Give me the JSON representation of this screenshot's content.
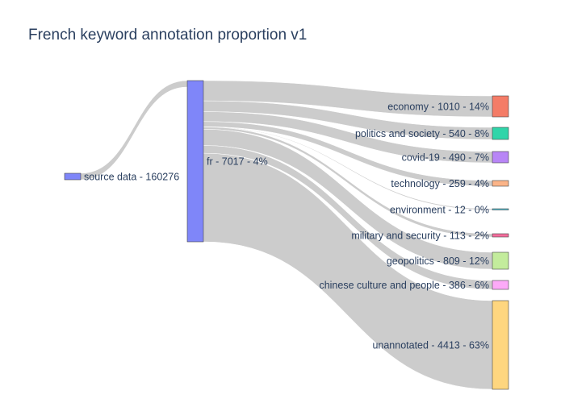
{
  "chart_data": {
    "type": "sankey",
    "title": "French keyword annotation proportion v1",
    "nodes": [
      {
        "id": "source",
        "label": "source data - 160276",
        "value": 160276,
        "color": "#7f86f9"
      },
      {
        "id": "fr",
        "label": "fr - 7017 - 4%",
        "value": 7017,
        "color": "#7f86f9"
      },
      {
        "id": "economy",
        "label": "economy - 1010 - 14%",
        "value": 1010,
        "color": "#f47c67"
      },
      {
        "id": "politics",
        "label": "politics and society - 540 - 8%",
        "value": 540,
        "color": "#2fd5a9"
      },
      {
        "id": "covid",
        "label": "covid-19 - 490 - 7%",
        "value": 490,
        "color": "#b885f6"
      },
      {
        "id": "technology",
        "label": "technology - 259 - 4%",
        "value": 259,
        "color": "#fbb488"
      },
      {
        "id": "environment",
        "label": "environment - 12 - 0%",
        "value": 12,
        "color": "#4fd0e8"
      },
      {
        "id": "military",
        "label": "military and security - 113 - 2%",
        "value": 113,
        "color": "#f46d9c"
      },
      {
        "id": "geopolitics",
        "label": "geopolitics - 809 - 12%",
        "value": 809,
        "color": "#c3ec9c"
      },
      {
        "id": "chinese",
        "label": "chinese culture and people - 386 - 6%",
        "value": 386,
        "color": "#fcaaf8"
      },
      {
        "id": "unannotated",
        "label": "unannotated - 4413 - 63%",
        "value": 4413,
        "color": "#fed67f"
      }
    ],
    "links": [
      {
        "source": "source",
        "target": "fr",
        "value": 7017
      },
      {
        "source": "fr",
        "target": "economy",
        "value": 1010
      },
      {
        "source": "fr",
        "target": "politics",
        "value": 540
      },
      {
        "source": "fr",
        "target": "covid",
        "value": 490
      },
      {
        "source": "fr",
        "target": "technology",
        "value": 259
      },
      {
        "source": "fr",
        "target": "environment",
        "value": 12
      },
      {
        "source": "fr",
        "target": "military",
        "value": 113
      },
      {
        "source": "fr",
        "target": "geopolitics",
        "value": 809
      },
      {
        "source": "fr",
        "target": "chinese",
        "value": 386
      },
      {
        "source": "fr",
        "target": "unannotated",
        "value": 4413
      }
    ]
  }
}
